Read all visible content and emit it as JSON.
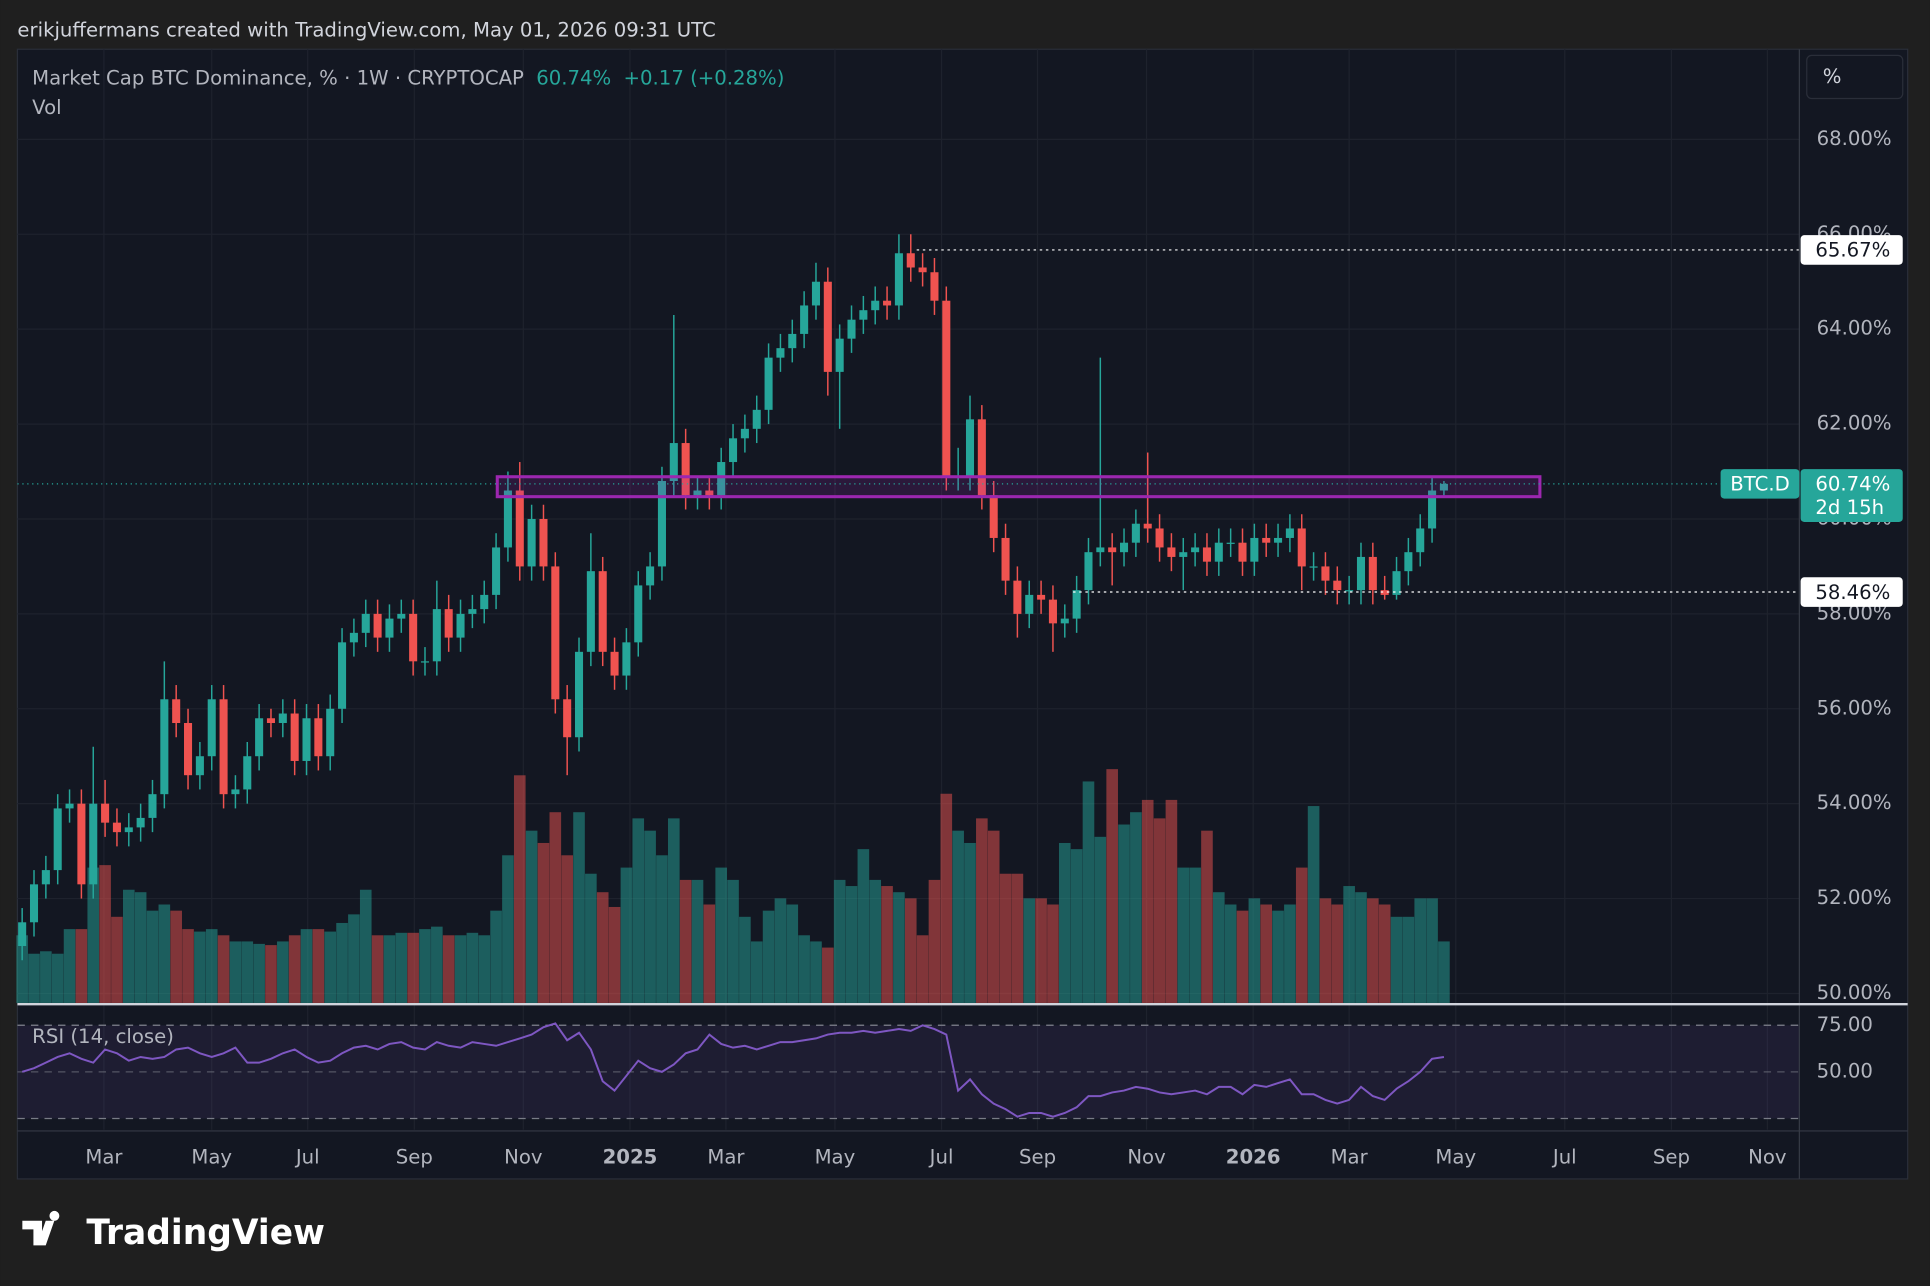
{
  "screen": {
    "credit": "erikjuffermans created with TradingView.com, May 01, 2026 09:31 UTC",
    "logo": "TradingView",
    "scale_button": "%"
  },
  "chart_data": {
    "type": "candlestick",
    "header": {
      "title": "Market Cap BTC Dominance, % · 1W · CRYPTOCAP",
      "price": "60.74%",
      "change": "+0.17 (+0.28%)",
      "volume_label": "Vol"
    },
    "up_color": "#26a69a",
    "down_color": "#ef5350",
    "candles": [
      [
        51.0,
        51.8,
        50.7,
        51.5
      ],
      [
        51.5,
        52.6,
        51.2,
        52.3
      ],
      [
        52.3,
        52.9,
        52.0,
        52.6
      ],
      [
        52.6,
        54.2,
        52.3,
        53.9
      ],
      [
        53.9,
        54.3,
        53.6,
        54.0
      ],
      [
        54.0,
        54.3,
        52.0,
        52.3
      ],
      [
        52.3,
        55.2,
        52.0,
        54.0
      ],
      [
        54.0,
        54.5,
        53.3,
        53.6
      ],
      [
        53.6,
        53.9,
        53.1,
        53.4
      ],
      [
        53.4,
        53.8,
        53.1,
        53.5
      ],
      [
        53.5,
        54.0,
        53.2,
        53.7
      ],
      [
        53.7,
        54.5,
        53.4,
        54.2
      ],
      [
        54.2,
        57.0,
        53.9,
        56.2
      ],
      [
        56.2,
        56.5,
        55.4,
        55.7
      ],
      [
        55.7,
        56.0,
        54.3,
        54.6
      ],
      [
        54.6,
        55.3,
        54.3,
        55.0
      ],
      [
        55.0,
        56.5,
        54.7,
        56.2
      ],
      [
        56.2,
        56.5,
        53.9,
        54.2
      ],
      [
        54.2,
        54.6,
        53.9,
        54.3
      ],
      [
        54.3,
        55.3,
        54.0,
        55.0
      ],
      [
        55.0,
        56.1,
        54.7,
        55.8
      ],
      [
        55.8,
        56.0,
        55.4,
        55.7
      ],
      [
        55.7,
        56.2,
        55.4,
        55.9
      ],
      [
        55.9,
        56.2,
        54.6,
        54.9
      ],
      [
        54.9,
        56.1,
        54.6,
        55.8
      ],
      [
        55.8,
        56.1,
        54.7,
        55.0
      ],
      [
        55.0,
        56.3,
        54.7,
        56.0
      ],
      [
        56.0,
        57.7,
        55.7,
        57.4
      ],
      [
        57.4,
        57.9,
        57.1,
        57.6
      ],
      [
        57.6,
        58.3,
        57.3,
        58.0
      ],
      [
        58.0,
        58.3,
        57.2,
        57.5
      ],
      [
        57.5,
        58.2,
        57.2,
        57.9
      ],
      [
        57.9,
        58.3,
        57.6,
        58.0
      ],
      [
        58.0,
        58.3,
        56.7,
        57.0
      ],
      [
        57.0,
        57.3,
        56.7,
        57.0
      ],
      [
        57.0,
        58.7,
        56.7,
        58.1
      ],
      [
        58.1,
        58.4,
        57.2,
        57.5
      ],
      [
        57.5,
        58.3,
        57.2,
        58.0
      ],
      [
        58.0,
        58.4,
        57.7,
        58.1
      ],
      [
        58.1,
        58.7,
        57.8,
        58.4
      ],
      [
        58.4,
        59.7,
        58.1,
        59.4
      ],
      [
        59.4,
        61.0,
        59.1,
        60.6
      ],
      [
        60.6,
        61.2,
        58.7,
        59.0
      ],
      [
        59.0,
        60.3,
        58.7,
        60.0
      ],
      [
        60.0,
        60.3,
        58.7,
        59.0
      ],
      [
        59.0,
        59.3,
        55.9,
        56.2
      ],
      [
        56.2,
        56.5,
        54.6,
        55.4
      ],
      [
        55.4,
        57.5,
        55.1,
        57.2
      ],
      [
        57.2,
        59.7,
        56.9,
        58.9
      ],
      [
        58.9,
        59.2,
        56.9,
        57.2
      ],
      [
        57.2,
        57.5,
        56.4,
        56.7
      ],
      [
        56.7,
        57.7,
        56.4,
        57.4
      ],
      [
        57.4,
        58.9,
        57.1,
        58.6
      ],
      [
        58.6,
        59.3,
        58.3,
        59.0
      ],
      [
        59.0,
        61.1,
        58.7,
        60.8
      ],
      [
        60.8,
        64.3,
        60.5,
        61.6
      ],
      [
        61.6,
        61.9,
        60.2,
        60.5
      ],
      [
        60.5,
        60.9,
        60.2,
        60.6
      ],
      [
        60.6,
        60.9,
        60.2,
        60.5
      ],
      [
        60.5,
        61.5,
        60.2,
        61.2
      ],
      [
        61.2,
        62.0,
        60.9,
        61.7
      ],
      [
        61.7,
        62.2,
        61.4,
        61.9
      ],
      [
        61.9,
        62.6,
        61.6,
        62.3
      ],
      [
        62.3,
        63.7,
        62.0,
        63.4
      ],
      [
        63.4,
        63.9,
        63.1,
        63.6
      ],
      [
        63.6,
        64.2,
        63.3,
        63.9
      ],
      [
        63.9,
        64.8,
        63.6,
        64.5
      ],
      [
        64.5,
        65.4,
        64.2,
        65.0
      ],
      [
        65.0,
        65.3,
        62.6,
        63.1
      ],
      [
        63.1,
        64.1,
        61.9,
        63.8
      ],
      [
        63.8,
        64.5,
        63.5,
        64.2
      ],
      [
        64.2,
        64.7,
        63.9,
        64.4
      ],
      [
        64.4,
        64.9,
        64.1,
        64.6
      ],
      [
        64.6,
        64.9,
        64.2,
        64.5
      ],
      [
        64.5,
        66.0,
        64.2,
        65.6
      ],
      [
        65.6,
        66.0,
        65.0,
        65.3
      ],
      [
        65.3,
        65.6,
        64.9,
        65.2
      ],
      [
        65.2,
        65.5,
        64.3,
        64.6
      ],
      [
        64.6,
        64.9,
        60.6,
        60.9
      ],
      [
        60.9,
        61.5,
        60.6,
        60.9
      ],
      [
        60.9,
        62.6,
        60.6,
        62.1
      ],
      [
        62.1,
        62.4,
        60.2,
        60.5
      ],
      [
        60.5,
        60.8,
        59.3,
        59.6
      ],
      [
        59.6,
        59.9,
        58.4,
        58.7
      ],
      [
        58.7,
        59.0,
        57.5,
        58.0
      ],
      [
        58.0,
        58.7,
        57.7,
        58.4
      ],
      [
        58.4,
        58.7,
        58.0,
        58.3
      ],
      [
        58.3,
        58.6,
        57.2,
        57.8
      ],
      [
        57.8,
        58.2,
        57.5,
        57.9
      ],
      [
        57.9,
        58.8,
        57.6,
        58.5
      ],
      [
        58.5,
        59.6,
        58.2,
        59.3
      ],
      [
        59.3,
        63.4,
        59.0,
        59.4
      ],
      [
        59.4,
        59.7,
        58.6,
        59.3
      ],
      [
        59.3,
        59.8,
        59.0,
        59.5
      ],
      [
        59.5,
        60.2,
        59.2,
        59.9
      ],
      [
        59.9,
        61.4,
        59.5,
        59.8
      ],
      [
        59.8,
        60.1,
        59.1,
        59.4
      ],
      [
        59.4,
        59.7,
        58.9,
        59.2
      ],
      [
        59.2,
        59.6,
        58.5,
        59.3
      ],
      [
        59.3,
        59.7,
        59.0,
        59.4
      ],
      [
        59.4,
        59.7,
        58.8,
        59.1
      ],
      [
        59.1,
        59.8,
        58.8,
        59.5
      ],
      [
        59.5,
        59.8,
        59.2,
        59.5
      ],
      [
        59.5,
        59.8,
        58.8,
        59.1
      ],
      [
        59.1,
        59.9,
        58.8,
        59.6
      ],
      [
        59.6,
        59.9,
        59.2,
        59.5
      ],
      [
        59.5,
        59.9,
        59.2,
        59.6
      ],
      [
        59.6,
        60.1,
        59.3,
        59.8
      ],
      [
        59.8,
        60.1,
        58.5,
        59.0
      ],
      [
        59.0,
        59.3,
        58.7,
        59.0
      ],
      [
        59.0,
        59.3,
        58.4,
        58.7
      ],
      [
        58.7,
        59.0,
        58.2,
        58.5
      ],
      [
        58.5,
        58.8,
        58.2,
        58.5
      ],
      [
        58.5,
        59.5,
        58.2,
        59.2
      ],
      [
        59.2,
        59.5,
        58.2,
        58.5
      ],
      [
        58.5,
        58.8,
        58.3,
        58.4
      ],
      [
        58.4,
        59.2,
        58.3,
        58.9
      ],
      [
        58.9,
        59.6,
        58.6,
        59.3
      ],
      [
        59.3,
        60.1,
        59.0,
        59.8
      ],
      [
        59.8,
        60.9,
        59.5,
        60.6
      ],
      [
        60.6,
        60.8,
        60.5,
        60.74
      ]
    ],
    "volume": [
      55,
      40,
      42,
      40,
      60,
      60,
      110,
      112,
      70,
      92,
      90,
      75,
      80,
      75,
      60,
      58,
      60,
      55,
      50,
      50,
      48,
      47,
      50,
      55,
      60,
      60,
      58,
      65,
      72,
      92,
      55,
      55,
      57,
      57,
      60,
      62,
      55,
      55,
      57,
      55,
      75,
      120,
      185,
      140,
      130,
      155,
      120,
      155,
      105,
      90,
      78,
      110,
      150,
      140,
      120,
      150,
      100,
      100,
      80,
      110,
      100,
      70,
      50,
      75,
      85,
      80,
      55,
      50,
      45,
      100,
      95,
      125,
      100,
      95,
      90,
      85,
      55,
      100,
      170,
      140,
      130,
      150,
      140,
      105,
      105,
      85,
      85,
      80,
      130,
      125,
      180,
      135,
      190,
      145,
      155,
      165,
      150,
      165,
      110,
      110,
      140,
      90,
      80,
      75,
      85,
      80,
      75,
      80,
      110,
      160,
      85,
      80,
      95,
      90,
      85,
      80,
      70,
      70,
      85,
      85,
      50
    ],
    "xlim": [
      -0.4,
      150.0
    ],
    "xticks": [
      {
        "value": 6.9,
        "label": "Mar"
      },
      {
        "value": 16.0,
        "label": "May"
      },
      {
        "value": 24.1,
        "label": "Jul"
      },
      {
        "value": 33.1,
        "label": "Sep"
      },
      {
        "value": 42.3,
        "label": "Nov"
      },
      {
        "value": 51.3,
        "label": "2025"
      },
      {
        "value": 59.4,
        "label": "Mar"
      },
      {
        "value": 68.6,
        "label": "May"
      },
      {
        "value": 77.6,
        "label": "Jul"
      },
      {
        "value": 85.7,
        "label": "Sep"
      },
      {
        "value": 94.9,
        "label": "Nov"
      },
      {
        "value": 103.9,
        "label": "2026"
      },
      {
        "value": 112.0,
        "label": "Mar"
      },
      {
        "value": 121.0,
        "label": "May"
      },
      {
        "value": 130.2,
        "label": "Jul"
      },
      {
        "value": 139.2,
        "label": "Sep"
      },
      {
        "value": 147.3,
        "label": "Nov"
      }
    ],
    "ylim": [
      49.8,
      69.9
    ],
    "yticks": [
      {
        "value": 50,
        "label": "50.00%"
      },
      {
        "value": 52,
        "label": "52.00%"
      },
      {
        "value": 54,
        "label": "54.00%"
      },
      {
        "value": 56,
        "label": "56.00%"
      },
      {
        "value": 58,
        "label": "58.00%"
      },
      {
        "value": 60,
        "label": "60.00%"
      },
      {
        "value": 62,
        "label": "62.00%"
      },
      {
        "value": 64,
        "label": "64.00%"
      },
      {
        "value": 66,
        "label": "66.00%"
      },
      {
        "value": 68,
        "label": "68.00%"
      }
    ],
    "grid": true,
    "zone": {
      "x": [
        40.1,
        128.1
      ],
      "y": [
        60.47,
        60.89
      ],
      "color": "#9c27b0"
    },
    "levels": [
      {
        "value": 65.67,
        "label": "65.67%",
        "start": 75.5
      },
      {
        "value": 58.46,
        "label": "58.46%",
        "start": 88.7
      }
    ],
    "last_price": {
      "symbol": "BTC.D",
      "value": 60.74,
      "label": "60.74%",
      "countdown": "2d 15h"
    },
    "rsi": {
      "title": "RSI (14, close)",
      "color": "#7e57c2",
      "ylim": [
        19,
        85
      ],
      "band": [
        25,
        75
      ],
      "yticks": [
        {
          "value": 50,
          "label": "50.00"
        },
        {
          "value": 75,
          "label": "75.00"
        }
      ],
      "values": [
        50,
        52,
        55,
        58,
        60,
        57,
        55,
        62,
        60,
        56,
        58,
        57,
        58,
        62,
        63,
        60,
        58,
        60,
        63,
        55,
        55,
        57,
        60,
        62,
        58,
        55,
        56,
        60,
        63,
        64,
        62,
        65,
        66,
        63,
        62,
        66,
        64,
        63,
        66,
        65,
        64,
        66,
        68,
        70,
        74,
        76,
        67,
        71,
        62,
        45,
        40,
        48,
        56,
        52,
        50,
        54,
        60,
        62,
        70,
        65,
        63,
        64,
        62,
        64,
        66,
        66,
        67,
        68,
        70,
        71,
        71,
        72,
        71,
        72,
        73,
        72,
        75,
        73,
        70,
        40,
        46,
        38,
        33,
        30,
        26,
        28,
        28,
        26,
        28,
        31,
        37,
        37,
        39,
        40,
        42,
        41,
        39,
        38,
        39,
        40,
        38,
        42,
        42,
        38,
        43,
        42,
        44,
        46,
        38,
        38,
        35,
        33,
        35,
        42,
        37,
        35,
        41,
        45,
        50,
        57,
        58
      ]
    }
  }
}
